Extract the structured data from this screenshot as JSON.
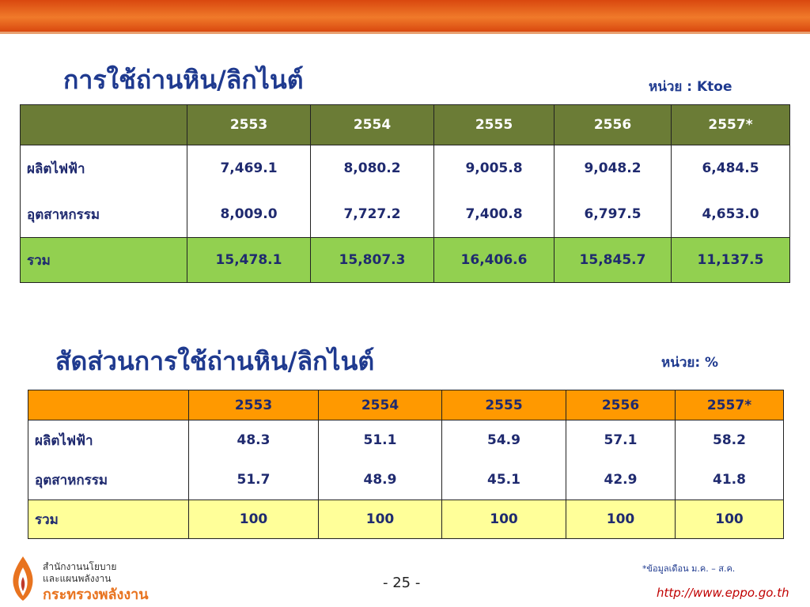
{
  "table1": {
    "title": "การใช้ถ่านหิน/ลิกไนต์",
    "unit": "หน่วย : Ktoe",
    "columns": [
      "2553",
      "2554",
      "2555",
      "2556",
      "2557*"
    ],
    "rows": [
      [
        "ผลิตไฟฟ้า",
        "7,469.1",
        "8,080.2",
        "9,005.8",
        "9,048.2",
        "6,484.5"
      ],
      [
        "อุตสาหกรรม",
        "8,009.0",
        "7,727.2",
        "7,400.8",
        "6,797.5",
        "4,653.0"
      ]
    ],
    "total": [
      "รวม",
      "15,478.1",
      "15,807.3",
      "16,406.6",
      "15,845.7",
      "11,137.5"
    ]
  },
  "table2": {
    "title": "สัดส่วนการใช้ถ่านหิน/ลิกไนต์",
    "unit": "หน่วย: %",
    "columns": [
      "2553",
      "2554",
      "2555",
      "2556",
      "2557*"
    ],
    "rows": [
      [
        "ผลิตไฟฟ้า",
        "48.3",
        "51.1",
        "54.9",
        "57.1",
        "58.2"
      ],
      [
        "อุตสาหกรรม",
        "51.7",
        "48.9",
        "45.1",
        "42.9",
        "41.8"
      ]
    ],
    "total": [
      "รวม",
      "100",
      "100",
      "100",
      "100",
      "100"
    ]
  },
  "footer": {
    "org_line1": "สำนักงานนโยบาย",
    "org_line2": "และแผนพลังงาน",
    "org_name": "กระทรวงพลังงาน",
    "page": "- 25 -",
    "note": "*ข้อมูลเดือน ม.ค. – ส.ค.",
    "url": "http://www.eppo.go.th"
  }
}
